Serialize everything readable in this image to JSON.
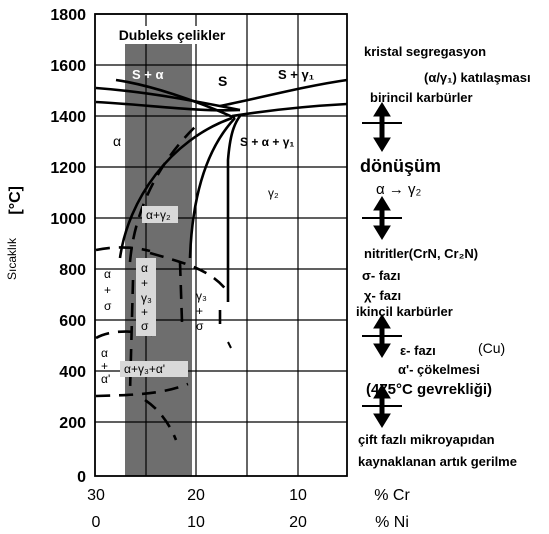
{
  "chart_data": {
    "type": "phase_diagram",
    "y_axis": {
      "label": "Sıcaklık",
      "unit": "[°C]",
      "ticks": [
        "0",
        "200",
        "400",
        "600",
        "800",
        "1000",
        "1200",
        "1400",
        "1600",
        "1800"
      ]
    },
    "x_axis_cr": {
      "ticks": [
        "30",
        "20",
        "10"
      ],
      "label": "% Cr"
    },
    "x_axis_ni": {
      "ticks": [
        "0",
        "10",
        "20"
      ],
      "label": "% Ni"
    },
    "shaded_band_label": "Dubleks çelikler",
    "region_labels": {
      "s_alpha": "S + α",
      "s": "S",
      "s_gamma1": "S + γ₁",
      "alpha": "α",
      "s_alpha_gamma1": "S + α + γ₁",
      "gamma2": "γ₂",
      "alpha_gamma2": "α+γ₂",
      "alpha_sigma": [
        "α",
        "+",
        "σ"
      ],
      "alpha_gamma3_sigma": [
        "α",
        "+",
        "γ₃",
        "+",
        "σ"
      ],
      "gamma3_sigma": [
        "γ₃",
        "+",
        "σ"
      ],
      "alpha_alphaprime": [
        "α",
        "+",
        "α'"
      ],
      "alpha_gamma3_alphaprime": "α+γ₃+α'"
    },
    "legend_notes": {
      "kristal": "kristal segregasyon",
      "katilasma": "(α/γ₁) katılaşması",
      "birincil": "birincil karbürler",
      "donusum": "dönüşüm",
      "alpha_to_gamma2": "α → γ₂",
      "nitritler": "nitritler(CrN, Cr₂N)",
      "sigma": "σ- fazı",
      "chi": "χ- fazı",
      "ikincil": "ikincil karbürler",
      "epsilon": "ε- fazı",
      "cu": "(Cu)",
      "alphaprime": "α'- çökelmesi",
      "gevreklik": "(475°C gevrekliği)",
      "cift": "çift fazlı mikroyapıdan",
      "kaynaklanan": "kaynaklanan artık gerilme"
    },
    "colors": {
      "band": "#6e6e6e",
      "line": "#000000",
      "grid": "#000000"
    }
  }
}
